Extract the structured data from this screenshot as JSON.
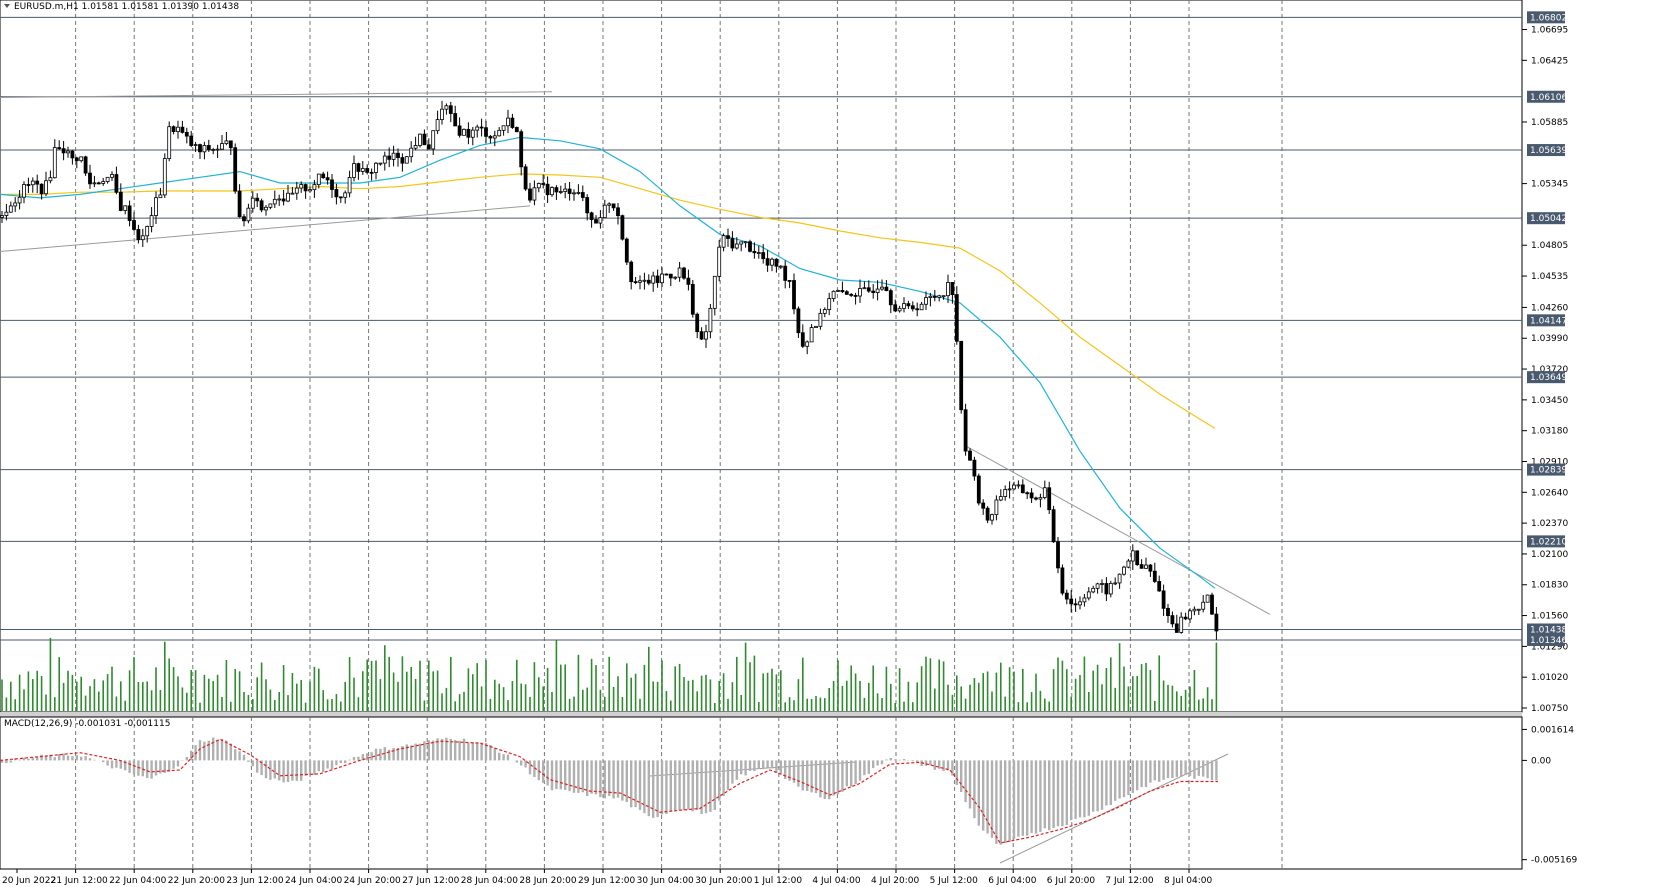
{
  "header": {
    "symbol_info": "EURUSD.m,H1  1.01581 1.01581 1.01390 1.01438",
    "dropdown_icon": "triangle-down-icon"
  },
  "macd": {
    "label": "MACD(12,26,9) -0.001031 -0.001115",
    "ticks": [
      "0.001614",
      "0.00",
      "-0.005169"
    ]
  },
  "price_axis": {
    "ticks": [
      "1.06695",
      "1.06425",
      "1.05885",
      "1.05345",
      "1.04805",
      "1.04535",
      "1.04260",
      "1.03990",
      "1.03720",
      "1.03450",
      "1.03180",
      "1.02910",
      "1.02640",
      "1.02370",
      "1.02100",
      "1.01830",
      "1.01560",
      "1.01290",
      "1.01020",
      "1.00750"
    ],
    "levels": [
      "1.06802",
      "1.06106",
      "1.05639",
      "1.05042",
      "1.04147",
      "1.03649",
      "1.02839",
      "1.02210",
      "1.01438",
      "1.01346"
    ]
  },
  "time_axis": {
    "labels": [
      "20 Jun 2022",
      "21 Jun 12:00",
      "22 Jun 04:00",
      "22 Jun 20:00",
      "23 Jun 12:00",
      "24 Jun 04:00",
      "24 Jun 20:00",
      "27 Jun 12:00",
      "28 Jun 04:00",
      "28 Jun 20:00",
      "29 Jun 12:00",
      "30 Jun 04:00",
      "30 Jun 20:00",
      "1 Jul 12:00",
      "4 Jul 04:00",
      "4 Jul 20:00",
      "5 Jul 12:00",
      "6 Jul 04:00",
      "6 Jul 20:00",
      "7 Jul 12:00",
      "8 Jul 04:00"
    ]
  },
  "colors": {
    "ma_fast": "#1fb4d8",
    "ma_slow": "#f5c518",
    "volume": "#2e8b2e",
    "macd_hist": "#b0b0b0",
    "macd_signal": "#e0201e",
    "level_line": "#4a5a6e",
    "label_box": "#4a5a6e"
  },
  "chart_data": {
    "type": "candlestick",
    "symbol": "EURUSD.m",
    "timeframe": "H1",
    "ohlc_current": {
      "open": 1.01581,
      "high": 1.01581,
      "low": 1.0139,
      "close": 1.01438
    },
    "ylim": [
      1.0075,
      1.0691
    ],
    "close_path": [
      [
        0,
        1.0505
      ],
      [
        8,
        1.0515
      ],
      [
        16,
        1.0522
      ],
      [
        24,
        1.053
      ],
      [
        32,
        1.0535
      ],
      [
        40,
        1.053
      ],
      [
        48,
        1.0533
      ],
      [
        56,
        1.057
      ],
      [
        64,
        1.0565
      ],
      [
        72,
        1.0555
      ],
      [
        80,
        1.056
      ],
      [
        88,
        1.0535
      ],
      [
        96,
        1.0535
      ],
      [
        104,
        1.054
      ],
      [
        112,
        1.0538
      ],
      [
        120,
        1.0515
      ],
      [
        128,
        1.051
      ],
      [
        136,
        1.049
      ],
      [
        144,
        1.0485
      ],
      [
        152,
        1.051
      ],
      [
        160,
        1.0525
      ],
      [
        168,
        1.058
      ],
      [
        176,
        1.0585
      ],
      [
        184,
        1.0575
      ],
      [
        192,
        1.0568
      ],
      [
        200,
        1.0562
      ],
      [
        208,
        1.0565
      ],
      [
        216,
        1.0565
      ],
      [
        224,
        1.0568
      ],
      [
        232,
        1.057
      ],
      [
        238,
        1.05
      ],
      [
        246,
        1.0505
      ],
      [
        254,
        1.053
      ],
      [
        262,
        1.051
      ],
      [
        270,
        1.052
      ],
      [
        278,
        1.0525
      ],
      [
        286,
        1.052
      ],
      [
        294,
        1.0525
      ],
      [
        302,
        1.053
      ],
      [
        310,
        1.0532
      ],
      [
        318,
        1.0538
      ],
      [
        326,
        1.054
      ],
      [
        334,
        1.053
      ],
      [
        342,
        1.052
      ],
      [
        350,
        1.0545
      ],
      [
        358,
        1.055
      ],
      [
        366,
        1.054
      ],
      [
        374,
        1.055
      ],
      [
        382,
        1.0555
      ],
      [
        390,
        1.0555
      ],
      [
        398,
        1.056
      ],
      [
        406,
        1.0555
      ],
      [
        414,
        1.057
      ],
      [
        422,
        1.0575
      ],
      [
        430,
        1.0565
      ],
      [
        438,
        1.0595
      ],
      [
        446,
        1.06
      ],
      [
        454,
        1.0585
      ],
      [
        462,
        1.058
      ],
      [
        470,
        1.0578
      ],
      [
        478,
        1.0582
      ],
      [
        486,
        1.058
      ],
      [
        494,
        1.0575
      ],
      [
        502,
        1.0585
      ],
      [
        510,
        1.059
      ],
      [
        516,
        1.0585
      ],
      [
        522,
        1.054
      ],
      [
        530,
        1.0525
      ],
      [
        538,
        1.053
      ],
      [
        546,
        1.053
      ],
      [
        554,
        1.0528
      ],
      [
        562,
        1.0525
      ],
      [
        570,
        1.053
      ],
      [
        578,
        1.053
      ],
      [
        586,
        1.051
      ],
      [
        594,
        1.05
      ],
      [
        602,
        1.051
      ],
      [
        610,
        1.052
      ],
      [
        618,
        1.051
      ],
      [
        624,
        1.048
      ],
      [
        632,
        1.045
      ],
      [
        640,
        1.0445
      ],
      [
        648,
        1.045
      ],
      [
        656,
        1.0448
      ],
      [
        664,
        1.0455
      ],
      [
        672,
        1.0455
      ],
      [
        680,
        1.0458
      ],
      [
        688,
        1.0445
      ],
      [
        694,
        1.042
      ],
      [
        700,
        1.039
      ],
      [
        708,
        1.041
      ],
      [
        714,
        1.0445
      ],
      [
        720,
        1.0485
      ],
      [
        728,
        1.0485
      ],
      [
        736,
        1.048
      ],
      [
        744,
        1.0482
      ],
      [
        752,
        1.0478
      ],
      [
        760,
        1.0472
      ],
      [
        768,
        1.0462
      ],
      [
        776,
        1.0465
      ],
      [
        784,
        1.0455
      ],
      [
        790,
        1.045
      ],
      [
        796,
        1.0415
      ],
      [
        804,
        1.039
      ],
      [
        812,
        1.041
      ],
      [
        820,
        1.0415
      ],
      [
        828,
        1.0435
      ],
      [
        836,
        1.044
      ],
      [
        844,
        1.0435
      ],
      [
        852,
        1.044
      ],
      [
        860,
        1.0438
      ],
      [
        868,
        1.044
      ],
      [
        876,
        1.0445
      ],
      [
        884,
        1.045
      ],
      [
        892,
        1.043
      ],
      [
        900,
        1.0425
      ],
      [
        908,
        1.0425
      ],
      [
        916,
        1.0428
      ],
      [
        924,
        1.043
      ],
      [
        932,
        1.0435
      ],
      [
        940,
        1.0438
      ],
      [
        948,
        1.0445
      ],
      [
        954,
        1.044
      ],
      [
        958,
        1.038
      ],
      [
        962,
        1.032
      ],
      [
        968,
        1.029
      ],
      [
        974,
        1.0285
      ],
      [
        980,
        1.025
      ],
      [
        988,
        1.024
      ],
      [
        996,
        1.0255
      ],
      [
        1004,
        1.0268
      ],
      [
        1012,
        1.0268
      ],
      [
        1020,
        1.0265
      ],
      [
        1028,
        1.0265
      ],
      [
        1036,
        1.0255
      ],
      [
        1044,
        1.027
      ],
      [
        1050,
        1.024
      ],
      [
        1056,
        1.021
      ],
      [
        1062,
        1.018
      ],
      [
        1068,
        1.017
      ],
      [
        1076,
        1.0165
      ],
      [
        1084,
        1.0175
      ],
      [
        1092,
        1.018
      ],
      [
        1100,
        1.018
      ],
      [
        1108,
        1.0178
      ],
      [
        1116,
        1.0185
      ],
      [
        1124,
        1.02
      ],
      [
        1132,
        1.021
      ],
      [
        1140,
        1.0195
      ],
      [
        1146,
        1.02
      ],
      [
        1152,
        1.019
      ],
      [
        1160,
        1.0175
      ],
      [
        1168,
        1.0155
      ],
      [
        1176,
        1.0145
      ],
      [
        1184,
        1.0155
      ],
      [
        1192,
        1.016
      ],
      [
        1200,
        1.0165
      ],
      [
        1206,
        1.0175
      ],
      [
        1212,
        1.0155
      ],
      [
        1218,
        1.0144
      ]
    ],
    "ma_fast_path": [
      [
        0,
        1.0525
      ],
      [
        40,
        1.0522
      ],
      [
        80,
        1.0525
      ],
      [
        120,
        1.053
      ],
      [
        160,
        1.0535
      ],
      [
        200,
        1.054
      ],
      [
        240,
        1.0545
      ],
      [
        280,
        1.0535
      ],
      [
        320,
        1.0535
      ],
      [
        360,
        1.0535
      ],
      [
        400,
        1.054
      ],
      [
        440,
        1.0555
      ],
      [
        480,
        1.0568
      ],
      [
        520,
        1.0575
      ],
      [
        560,
        1.0572
      ],
      [
        600,
        1.0565
      ],
      [
        640,
        1.0545
      ],
      [
        680,
        1.0515
      ],
      [
        720,
        1.049
      ],
      [
        760,
        1.048
      ],
      [
        800,
        1.046
      ],
      [
        840,
        1.045
      ],
      [
        880,
        1.0448
      ],
      [
        920,
        1.044
      ],
      [
        960,
        1.043
      ],
      [
        1000,
        1.04
      ],
      [
        1040,
        1.036
      ],
      [
        1080,
        1.03
      ],
      [
        1120,
        1.025
      ],
      [
        1160,
        1.0215
      ],
      [
        1200,
        1.019
      ],
      [
        1215,
        1.018
      ]
    ],
    "ma_slow_path": [
      [
        0,
        1.0525
      ],
      [
        40,
        1.0525
      ],
      [
        80,
        1.0527
      ],
      [
        120,
        1.0527
      ],
      [
        160,
        1.0528
      ],
      [
        200,
        1.0528
      ],
      [
        240,
        1.0528
      ],
      [
        280,
        1.053
      ],
      [
        320,
        1.0532
      ],
      [
        360,
        1.053
      ],
      [
        400,
        1.0532
      ],
      [
        440,
        1.0536
      ],
      [
        480,
        1.054
      ],
      [
        520,
        1.0543
      ],
      [
        560,
        1.0542
      ],
      [
        600,
        1.054
      ],
      [
        640,
        1.053
      ],
      [
        680,
        1.052
      ],
      [
        720,
        1.0512
      ],
      [
        760,
        1.0505
      ],
      [
        800,
        1.05
      ],
      [
        840,
        1.0493
      ],
      [
        880,
        1.0487
      ],
      [
        920,
        1.0483
      ],
      [
        960,
        1.0478
      ],
      [
        1000,
        1.0458
      ],
      [
        1040,
        1.043
      ],
      [
        1080,
        1.04
      ],
      [
        1120,
        1.0375
      ],
      [
        1160,
        1.035
      ],
      [
        1200,
        1.0328
      ],
      [
        1215,
        1.032
      ]
    ],
    "trendlines": [
      {
        "x1": 0,
        "y1": 1.0475,
        "x2": 530,
        "y2": 1.0515
      },
      {
        "x1": 0,
        "y1": 1.061,
        "x2": 552,
        "y2": 1.0615
      },
      {
        "x1": 965,
        "y1": 1.0305,
        "x2": 1270,
        "y2": 1.0157
      }
    ],
    "levels": [
      1.06802,
      1.06106,
      1.05639,
      1.05042,
      1.04147,
      1.03649,
      1.02839,
      1.0221,
      1.01438,
      1.01346
    ],
    "macd_ylim": [
      -0.0055,
      0.002
    ],
    "macd_path": [
      [
        0,
        -0.0001
      ],
      [
        40,
        0.0002
      ],
      [
        80,
        0.0003
      ],
      [
        120,
        -0.0005
      ],
      [
        150,
        -0.001
      ],
      [
        180,
        -0.0002
      ],
      [
        200,
        0.001
      ],
      [
        220,
        0.0012
      ],
      [
        240,
        0.0005
      ],
      [
        260,
        -0.0008
      ],
      [
        290,
        -0.0012
      ],
      [
        330,
        -0.0004
      ],
      [
        370,
        0.0005
      ],
      [
        410,
        0.0008
      ],
      [
        450,
        0.0012
      ],
      [
        490,
        0.0008
      ],
      [
        520,
        -0.0002
      ],
      [
        550,
        -0.0015
      ],
      [
        590,
        -0.0018
      ],
      [
        620,
        -0.002
      ],
      [
        650,
        -0.003
      ],
      [
        680,
        -0.0025
      ],
      [
        710,
        -0.0028
      ],
      [
        740,
        -0.0008
      ],
      [
        770,
        -0.0003
      ],
      [
        800,
        -0.0015
      ],
      [
        830,
        -0.002
      ],
      [
        860,
        -0.001
      ],
      [
        890,
        0.0002
      ],
      [
        920,
        -0.0002
      ],
      [
        950,
        -0.0006
      ],
      [
        980,
        -0.0035
      ],
      [
        1000,
        -0.0045
      ],
      [
        1030,
        -0.0038
      ],
      [
        1060,
        -0.0034
      ],
      [
        1090,
        -0.0028
      ],
      [
        1120,
        -0.002
      ],
      [
        1150,
        -0.0012
      ],
      [
        1180,
        -0.0008
      ],
      [
        1218,
        -0.001
      ]
    ],
    "macd_signal_path": [
      [
        0,
        0.0
      ],
      [
        40,
        0.0002
      ],
      [
        80,
        0.0004
      ],
      [
        120,
        0.0
      ],
      [
        150,
        -0.0006
      ],
      [
        180,
        -0.0005
      ],
      [
        200,
        0.0006
      ],
      [
        220,
        0.0011
      ],
      [
        250,
        0.0003
      ],
      [
        280,
        -0.0008
      ],
      [
        320,
        -0.0007
      ],
      [
        360,
        0.0
      ],
      [
        400,
        0.0006
      ],
      [
        440,
        0.001
      ],
      [
        480,
        0.0009
      ],
      [
        520,
        0.0002
      ],
      [
        550,
        -0.001
      ],
      [
        590,
        -0.0016
      ],
      [
        620,
        -0.0017
      ],
      [
        660,
        -0.0027
      ],
      [
        700,
        -0.0025
      ],
      [
        740,
        -0.0012
      ],
      [
        770,
        -0.0005
      ],
      [
        800,
        -0.0011
      ],
      [
        830,
        -0.0018
      ],
      [
        860,
        -0.0012
      ],
      [
        890,
        -0.0002
      ],
      [
        920,
        -0.0001
      ],
      [
        950,
        -0.0005
      ],
      [
        980,
        -0.0025
      ],
      [
        1000,
        -0.0043
      ],
      [
        1030,
        -0.004
      ],
      [
        1060,
        -0.0036
      ],
      [
        1090,
        -0.0031
      ],
      [
        1120,
        -0.0024
      ],
      [
        1150,
        -0.0016
      ],
      [
        1180,
        -0.0011
      ],
      [
        1218,
        -0.0011
      ]
    ]
  }
}
